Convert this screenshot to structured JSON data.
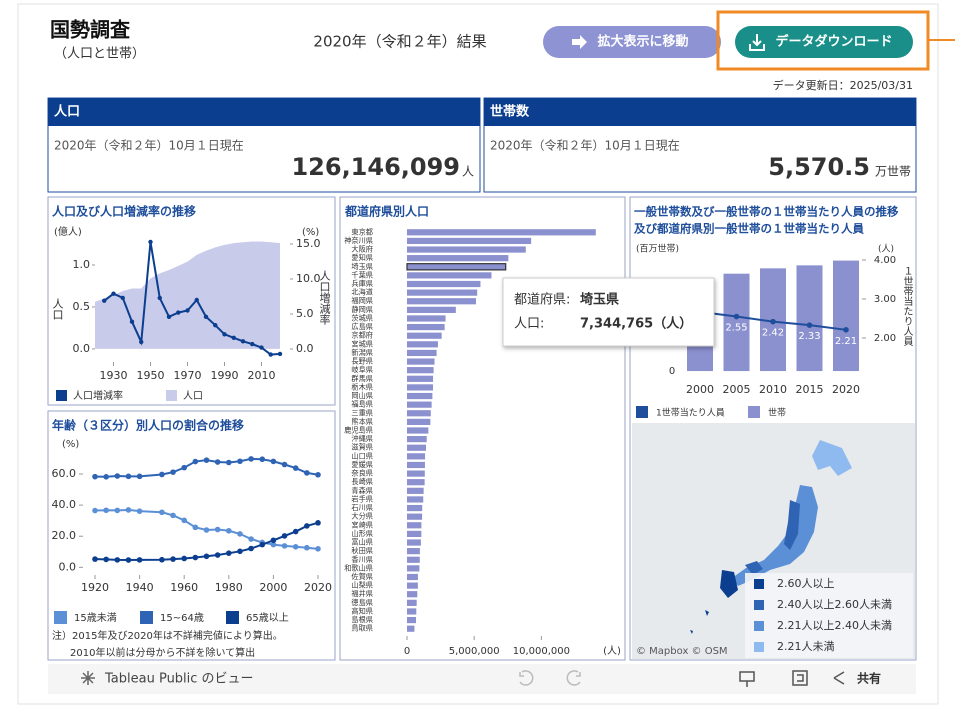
{
  "header": {
    "title": "国勢調査",
    "subtitle": "（人口と世帯）",
    "result": "2020年（令和２年）結果",
    "button_zoom": "拡大表示に移動",
    "button_download": "データダウンロード",
    "updated": "データ更新日：2025/03/31"
  },
  "kpis": [
    {
      "title": "人口",
      "date": "2020年（令和２年）10月１日現在",
      "value": "126,146,099",
      "unit": "人"
    },
    {
      "title": "世帯数",
      "date": "2020年（令和２年）10月１日現在",
      "value": "5,570.5",
      "unit": "万世帯"
    }
  ],
  "population_chart": {
    "type": "line",
    "title": "人口及び人口増減率の推移",
    "yunit": "(億人)",
    "y2unit": "(%)",
    "ylabel": "人口",
    "y2label": "人口増減率",
    "x": [
      1920,
      1925,
      1930,
      1935,
      1940,
      1945,
      1950,
      1955,
      1960,
      1965,
      1970,
      1975,
      1980,
      1985,
      1990,
      1995,
      2000,
      2005,
      2010,
      2015,
      2020
    ],
    "series": [
      {
        "name": "人口増減率",
        "color": "#0b3e8f",
        "axis": "y2",
        "type": "line",
        "values": [
          null,
          6.9,
          7.9,
          7.3,
          3.9,
          1.0,
          15.3,
          7.3,
          4.6,
          5.2,
          5.5,
          7.0,
          4.6,
          3.4,
          2.1,
          1.6,
          1.1,
          0.7,
          0.2,
          -0.8,
          -0.7
        ]
      },
      {
        "name": "人口",
        "color": "#c9cbeb",
        "type": "area",
        "values": [
          0.56,
          0.6,
          0.64,
          0.69,
          0.72,
          0.72,
          0.84,
          0.9,
          0.94,
          0.99,
          1.04,
          1.12,
          1.17,
          1.21,
          1.24,
          1.26,
          1.27,
          1.28,
          1.28,
          1.27,
          1.26
        ]
      }
    ],
    "xlim": [
      1920,
      2020
    ],
    "xticks": [
      1930,
      1950,
      1970,
      1990,
      2010
    ],
    "ylim": [
      -0.12,
      1.5
    ],
    "yticks": [
      {
        "value": 0,
        "label": "0.0"
      },
      {
        "value": 0.5,
        "label": "0.5"
      },
      {
        "value": 1,
        "label": "1.0"
      }
    ],
    "y2lim": [
      -1.43,
      18
    ],
    "y2ticks": [
      {
        "value": 0,
        "label": "0.0"
      },
      {
        "value": 5,
        "label": "5.0"
      },
      {
        "value": 10,
        "label": "10.0"
      },
      {
        "value": 15,
        "label": "15.0"
      }
    ]
  },
  "prefecture_chart": {
    "type": "bar",
    "title": "都道府県別人口",
    "xunit": "(人)",
    "categories": [
      "東京都",
      "神奈川県",
      "大阪府",
      "愛知県",
      "埼玉県",
      "千葉県",
      "兵庫県",
      "北海道",
      "福岡県",
      "静岡県",
      "茨城県",
      "広島県",
      "京都府",
      "宮城県",
      "新潟県",
      "長野県",
      "岐阜県",
      "群馬県",
      "栃木県",
      "岡山県",
      "福島県",
      "三重県",
      "熊本県",
      "鹿児島県",
      "沖縄県",
      "滋賀県",
      "山口県",
      "愛媛県",
      "奈良県",
      "長崎県",
      "青森県",
      "岩手県",
      "石川県",
      "大分県",
      "宮崎県",
      "山形県",
      "富山県",
      "秋田県",
      "香川県",
      "和歌山県",
      "佐賀県",
      "山梨県",
      "福井県",
      "徳島県",
      "高知県",
      "島根県",
      "鳥取県"
    ],
    "values": [
      14047594,
      9237337,
      8837685,
      7542415,
      7344765,
      6284480,
      5465002,
      5224614,
      5135214,
      3633202,
      2867009,
      2799702,
      2578087,
      2301996,
      2201272,
      2048011,
      1978742,
      1939110,
      1933146,
      1888432,
      1833152,
      1770254,
      1738301,
      1588256,
      1467480,
      1413610,
      1342059,
      1334841,
      1324473,
      1312317,
      1237984,
      1210534,
      1132526,
      1123852,
      1069576,
      1068027,
      1034814,
      959502,
      950244,
      922584,
      811442,
      809974,
      766863,
      719559,
      691527,
      671126,
      553407
    ],
    "color": "#8b90cf",
    "highlight": 4,
    "xlim": [
      0,
      15700000
    ],
    "xticks": [
      0,
      {
        "value": 5000000,
        "label": "5,000,000"
      },
      {
        "value": 10000000,
        "label": "10,000,000"
      }
    ],
    "tooltip": {
      "key1": "都道府県:",
      "val1": "埼玉県",
      "key2": "人口:",
      "val2": "7,344,765（人）"
    }
  },
  "age_chart": {
    "type": "line",
    "title": "年齢（３区分）別人口の割合の推移",
    "yunit": "(%)",
    "x": [
      1920,
      1925,
      1930,
      1935,
      1940,
      1950,
      1955,
      1960,
      1965,
      1970,
      1975,
      1980,
      1985,
      1990,
      1995,
      2000,
      2005,
      2010,
      2015,
      2020
    ],
    "series": [
      {
        "name": "15歳未満",
        "color": "#5b8fd6",
        "values": [
          36.5,
          36.7,
          36.6,
          36.9,
          36.1,
          35.4,
          33.4,
          30.2,
          25.7,
          24.0,
          24.3,
          23.5,
          21.5,
          18.2,
          16.0,
          14.6,
          13.8,
          13.2,
          12.6,
          11.9
        ]
      },
      {
        "name": "15~64歳",
        "color": "#2f64b5",
        "values": [
          58.3,
          58.2,
          58.7,
          58.5,
          58.5,
          59.7,
          61.2,
          64.1,
          68.0,
          68.9,
          67.7,
          67.4,
          68.2,
          69.7,
          69.5,
          68.1,
          66.1,
          63.8,
          60.7,
          59.5
        ]
      },
      {
        "name": "65歳以上",
        "color": "#0b3e8f",
        "values": [
          5.3,
          5.1,
          4.8,
          4.7,
          4.8,
          4.9,
          5.3,
          5.7,
          6.3,
          7.1,
          7.9,
          9.1,
          10.3,
          12.1,
          14.6,
          17.4,
          20.2,
          23.0,
          26.6,
          28.6
        ]
      }
    ],
    "xlim": [
      1920,
      2020
    ],
    "xticks": [
      1920,
      1940,
      1960,
      1980,
      2000,
      2020
    ],
    "ylim": [
      -3,
      78
    ],
    "yticks": [
      {
        "value": 0,
        "label": "0.0"
      },
      {
        "value": 20,
        "label": "20.0"
      },
      {
        "value": 40,
        "label": "40.0"
      },
      {
        "value": 60,
        "label": "60.0"
      }
    ],
    "notes": [
      "注）2015年及び2020年は不詳補完値により算出。",
      "2010年以前は分母から不詳を除いて算出"
    ]
  },
  "household_chart": {
    "type": "bar",
    "title": [
      "一般世帯数及び一般世帯の１世帯当たり人員の推移",
      "及び都道府県別一般世帯の１世帯当たり人員"
    ],
    "yunit": "(百万世帯)",
    "y2unit": "(人)",
    "y2label": "１世帯当たり人員",
    "categories": [
      "2000",
      "2005",
      "2010",
      "2015",
      "2020"
    ],
    "series": [
      {
        "name": "1世帯当たり人員",
        "color": "#1f4e9c",
        "type": "line",
        "axis": "y2",
        "values": [
          2.67,
          2.55,
          2.42,
          2.33,
          2.21
        ]
      },
      {
        "name": "世帯",
        "color": "#8b90cf",
        "type": "bar",
        "values": [
          46.8,
          49.1,
          51.8,
          53.3,
          55.7
        ]
      }
    ],
    "ylim": [
      -3,
      56
    ],
    "yticks": [
      0
    ],
    "y2lim": [
      1,
      4
    ],
    "y2ticks": [
      {
        "value": 2,
        "label": "2.00"
      },
      {
        "value": 3,
        "label": "3.00"
      },
      {
        "value": 4,
        "label": "4.00"
      }
    ]
  },
  "map": {
    "legend": [
      {
        "label": "2.60人以上",
        "color": "#0b3e8f"
      },
      {
        "label": "2.40人以上2.60人未満",
        "color": "#2f64b5"
      },
      {
        "label": "2.21人以上2.40人未満",
        "color": "#5b8fd6"
      },
      {
        "label": "2.21人未満",
        "color": "#8fbaf0"
      }
    ],
    "credit": "© Mapbox  © OSM"
  },
  "toolbar": {
    "brand": "Tableau Public のビュー",
    "share": "共有"
  }
}
